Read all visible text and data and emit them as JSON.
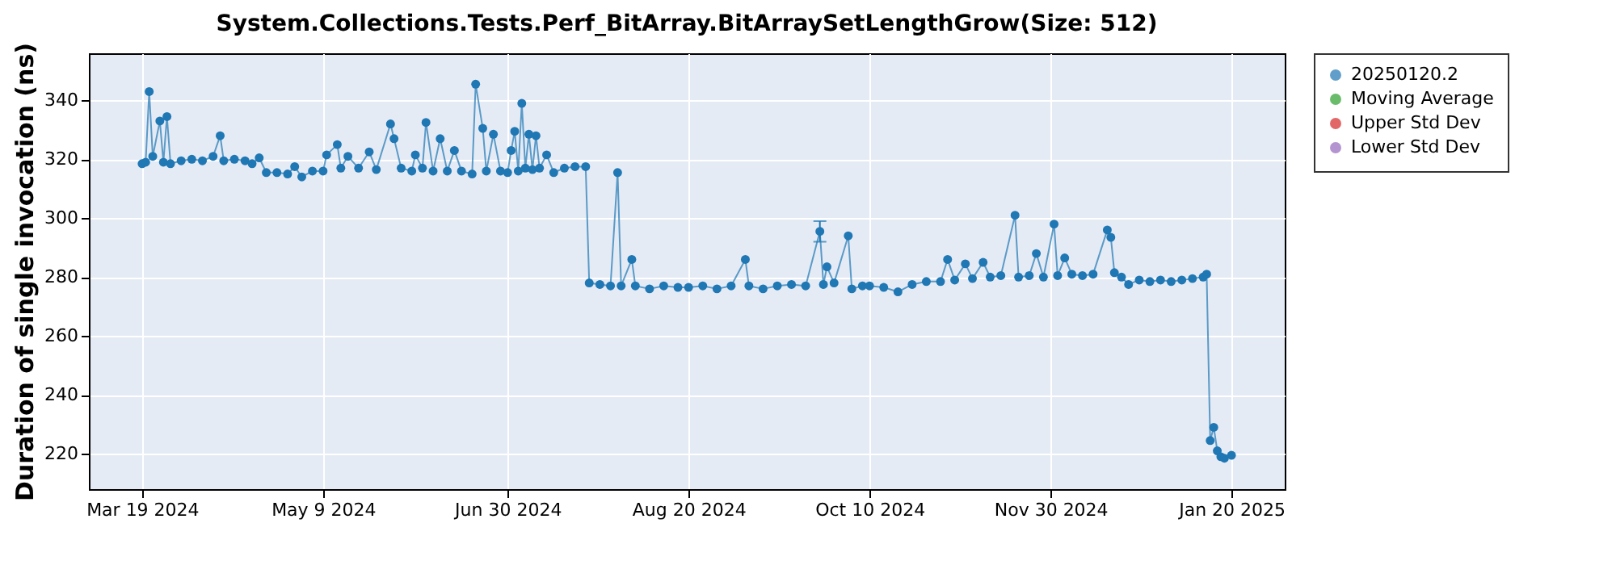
{
  "chart_data": {
    "type": "line",
    "title": "System.Collections.Tests.Perf_BitArray.BitArraySetLengthGrow(Size: 512)",
    "ylabel": "Duration of single invocation (ns)",
    "x": [
      "2024-03-19",
      "2024-03-20",
      "2024-03-21",
      "2024-03-22",
      "2024-03-24",
      "2024-03-25",
      "2024-03-26",
      "2024-03-27",
      "2024-03-30",
      "2024-04-02",
      "2024-04-05",
      "2024-04-08",
      "2024-04-10",
      "2024-04-11",
      "2024-04-14",
      "2024-04-17",
      "2024-04-19",
      "2024-04-21",
      "2024-04-23",
      "2024-04-26",
      "2024-04-29",
      "2024-05-01",
      "2024-05-03",
      "2024-05-06",
      "2024-05-09",
      "2024-05-10",
      "2024-05-13",
      "2024-05-14",
      "2024-05-16",
      "2024-05-19",
      "2024-05-22",
      "2024-05-24",
      "2024-05-28",
      "2024-05-29",
      "2024-05-31",
      "2024-06-03",
      "2024-06-04",
      "2024-06-06",
      "2024-06-07",
      "2024-06-09",
      "2024-06-11",
      "2024-06-13",
      "2024-06-15",
      "2024-06-17",
      "2024-06-20",
      "2024-06-21",
      "2024-06-23",
      "2024-06-24",
      "2024-06-26",
      "2024-06-28",
      "2024-06-30",
      "2024-07-01",
      "2024-07-02",
      "2024-07-03",
      "2024-07-04",
      "2024-07-05",
      "2024-07-06",
      "2024-07-07",
      "2024-07-08",
      "2024-07-09",
      "2024-07-11",
      "2024-07-13",
      "2024-07-16",
      "2024-07-19",
      "2024-07-22",
      "2024-07-23",
      "2024-07-26",
      "2024-07-29",
      "2024-07-31",
      "2024-08-01",
      "2024-08-04",
      "2024-08-05",
      "2024-08-09",
      "2024-08-13",
      "2024-08-17",
      "2024-08-20",
      "2024-08-24",
      "2024-08-28",
      "2024-09-01",
      "2024-09-05",
      "2024-09-06",
      "2024-09-10",
      "2024-09-14",
      "2024-09-18",
      "2024-09-22",
      "2024-09-26",
      "2024-09-27",
      "2024-09-28",
      "2024-09-30",
      "2024-10-04",
      "2024-10-05",
      "2024-10-08",
      "2024-10-10",
      "2024-10-14",
      "2024-10-18",
      "2024-10-22",
      "2024-10-26",
      "2024-10-30",
      "2024-11-01",
      "2024-11-03",
      "2024-11-06",
      "2024-11-08",
      "2024-11-11",
      "2024-11-13",
      "2024-11-16",
      "2024-11-20",
      "2024-11-21",
      "2024-11-24",
      "2024-11-26",
      "2024-11-28",
      "2024-12-01",
      "2024-12-02",
      "2024-12-04",
      "2024-12-06",
      "2024-12-09",
      "2024-12-12",
      "2024-12-16",
      "2024-12-17",
      "2024-12-18",
      "2024-12-20",
      "2024-12-22",
      "2024-12-25",
      "2024-12-28",
      "2024-12-31",
      "2025-01-03",
      "2025-01-06",
      "2025-01-09",
      "2025-01-12",
      "2025-01-13",
      "2025-01-14",
      "2025-01-15",
      "2025-01-16",
      "2025-01-17",
      "2025-01-18",
      "2025-01-20"
    ],
    "series": [
      {
        "name": "20250120.2",
        "color": "#1f77b4",
        "values": [
          318.5,
          319,
          343,
          321,
          333,
          319,
          334.5,
          318.5,
          319.5,
          320,
          319.5,
          321,
          328,
          319.5,
          320,
          319.5,
          318.5,
          320.5,
          315.5,
          315.5,
          315,
          317.5,
          314,
          316,
          316,
          321.5,
          325,
          317,
          321,
          317,
          322.5,
          316.5,
          332,
          327,
          317,
          316,
          321.5,
          317,
          332.5,
          316,
          327,
          316,
          323,
          316,
          315,
          345.5,
          330.5,
          316,
          328.5,
          316,
          315.5,
          323,
          329.5,
          316,
          339,
          317,
          328.5,
          316.5,
          328,
          317,
          321.5,
          315.5,
          317,
          317.5,
          317.5,
          278,
          277.5,
          277,
          315.5,
          277,
          286,
          277,
          276,
          277,
          276.5,
          276.5,
          277,
          276,
          277,
          286,
          277,
          276,
          277,
          277.5,
          277,
          295.5,
          277.5,
          283.5,
          278,
          294,
          276,
          277,
          277,
          276.5,
          275,
          277.5,
          278.5,
          278.5,
          286,
          279,
          284.5,
          279.5,
          285,
          280,
          280.5,
          301,
          280,
          280.5,
          288,
          280,
          298,
          280.5,
          286.5,
          281,
          280.5,
          281,
          296,
          293.5,
          281.5,
          280,
          277.5,
          279,
          278.5,
          279,
          278.5,
          279,
          279.5,
          280,
          281,
          224.5,
          229,
          221,
          219,
          218.5,
          219.5
        ],
        "errors": [
          null,
          null,
          null,
          null,
          null,
          null,
          null,
          null,
          null,
          null,
          null,
          null,
          null,
          null,
          null,
          null,
          null,
          null,
          null,
          null,
          null,
          null,
          null,
          null,
          null,
          null,
          null,
          null,
          null,
          null,
          null,
          null,
          null,
          null,
          null,
          null,
          null,
          null,
          null,
          null,
          null,
          null,
          null,
          null,
          null,
          null,
          null,
          null,
          null,
          null,
          null,
          null,
          null,
          null,
          null,
          null,
          null,
          null,
          null,
          null,
          null,
          null,
          null,
          null,
          null,
          null,
          null,
          null,
          null,
          null,
          null,
          null,
          null,
          null,
          null,
          null,
          null,
          null,
          null,
          null,
          null,
          null,
          null,
          null,
          null,
          [
            292,
            299
          ],
          null,
          null,
          null,
          null,
          null,
          null,
          null,
          null,
          null,
          null,
          null,
          null,
          null,
          null,
          null,
          null,
          null,
          null,
          null,
          null,
          null,
          null,
          null,
          null,
          null,
          null,
          null,
          null,
          null,
          null,
          null,
          null,
          null,
          null,
          null,
          null,
          null,
          null,
          null,
          null,
          null,
          null,
          null,
          null,
          null,
          null,
          null,
          null,
          null
        ]
      },
      {
        "name": "Moving Average",
        "color": "#2ca02c",
        "values": [
          null,
          null,
          null,
          null,
          null,
          null,
          null,
          null,
          null,
          null,
          null,
          null,
          null,
          null,
          null,
          null,
          null,
          null,
          null,
          null,
          null,
          null,
          null,
          null,
          null,
          null,
          null,
          null,
          null,
          null,
          null,
          null,
          null,
          null,
          null,
          null,
          null,
          null,
          null,
          null,
          null,
          null,
          null,
          null,
          null,
          null,
          null,
          null,
          null,
          null,
          null,
          null,
          null,
          null,
          null,
          null,
          null,
          null,
          null,
          null,
          null,
          null,
          null,
          null,
          null,
          null,
          null,
          null,
          null,
          null,
          null,
          null,
          null,
          null,
          null,
          null,
          null,
          null,
          null,
          null,
          null,
          null,
          null,
          null,
          null,
          null,
          null,
          null,
          null,
          null,
          null,
          null,
          null,
          null,
          null,
          null,
          null,
          null,
          null,
          null,
          null,
          null,
          null,
          null,
          null,
          null,
          null,
          null,
          null,
          null,
          null,
          null,
          null,
          null,
          null,
          null,
          null,
          null,
          null,
          null,
          null,
          null,
          null,
          null,
          null,
          null,
          null,
          null,
          null,
          null,
          null,
          null,
          null,
          null,
          null
        ]
      },
      {
        "name": "Upper Std Dev",
        "color": "#d62728",
        "values": [
          null,
          null,
          null,
          null,
          null,
          null,
          null,
          null,
          null,
          null,
          null,
          null,
          null,
          null,
          null,
          null,
          null,
          null,
          null,
          null,
          null,
          null,
          null,
          null,
          null,
          null,
          null,
          null,
          null,
          null,
          null,
          null,
          null,
          null,
          null,
          null,
          null,
          null,
          null,
          null,
          null,
          null,
          null,
          null,
          null,
          null,
          null,
          null,
          null,
          null,
          null,
          null,
          null,
          null,
          null,
          null,
          null,
          null,
          null,
          null,
          null,
          null,
          null,
          null,
          null,
          null,
          null,
          null,
          null,
          null,
          null,
          null,
          null,
          null,
          null,
          null,
          null,
          null,
          null,
          null,
          null,
          null,
          null,
          null,
          null,
          null,
          null,
          null,
          null,
          null,
          null,
          null,
          null,
          null,
          null,
          null,
          null,
          null,
          null,
          null,
          null,
          null,
          null,
          null,
          null,
          null,
          null,
          null,
          null,
          null,
          null,
          null,
          null,
          null,
          null,
          null,
          null,
          null,
          null,
          null,
          null,
          null,
          null,
          null,
          null,
          null,
          null,
          null,
          null,
          null,
          null,
          null,
          null,
          null,
          null
        ]
      },
      {
        "name": "Lower Std Dev",
        "color": "#9467bd",
        "values": [
          null,
          null,
          null,
          null,
          null,
          null,
          null,
          null,
          null,
          null,
          null,
          null,
          null,
          null,
          null,
          null,
          null,
          null,
          null,
          null,
          null,
          null,
          null,
          null,
          null,
          null,
          null,
          null,
          null,
          null,
          null,
          null,
          null,
          null,
          null,
          null,
          null,
          null,
          null,
          null,
          null,
          null,
          null,
          null,
          null,
          null,
          null,
          null,
          null,
          null,
          null,
          null,
          null,
          null,
          null,
          null,
          null,
          null,
          null,
          null,
          null,
          null,
          null,
          null,
          null,
          null,
          null,
          null,
          null,
          null,
          null,
          null,
          null,
          null,
          null,
          null,
          null,
          null,
          null,
          null,
          null,
          null,
          null,
          null,
          null,
          null,
          null,
          null,
          null,
          null,
          null,
          null,
          null,
          null,
          null,
          null,
          null,
          null,
          null,
          null,
          null,
          null,
          null,
          null,
          null,
          null,
          null,
          null,
          null,
          null,
          null,
          null,
          null,
          null,
          null,
          null,
          null,
          null,
          null,
          null,
          null,
          null,
          null,
          null,
          null,
          null,
          null,
          null,
          null,
          null,
          null,
          null,
          null,
          null,
          null
        ]
      }
    ],
    "xlim": [
      "2024-03-04",
      "2025-02-04"
    ],
    "xticks": [
      {
        "value": "2024-03-19",
        "label": "Mar 19 2024"
      },
      {
        "value": "2024-05-09",
        "label": "May 9 2024"
      },
      {
        "value": "2024-06-30",
        "label": "Jun 30 2024"
      },
      {
        "value": "2024-08-20",
        "label": "Aug 20 2024"
      },
      {
        "value": "2024-10-10",
        "label": "Oct 10 2024"
      },
      {
        "value": "2024-11-30",
        "label": "Nov 30 2024"
      },
      {
        "value": "2025-01-20",
        "label": "Jan 20 2025"
      }
    ],
    "ylim": [
      208,
      356
    ],
    "yticks": [
      220,
      240,
      260,
      280,
      300,
      320,
      340
    ],
    "grid": true,
    "legend": "right",
    "marker": "circle",
    "line_style": "solid"
  }
}
